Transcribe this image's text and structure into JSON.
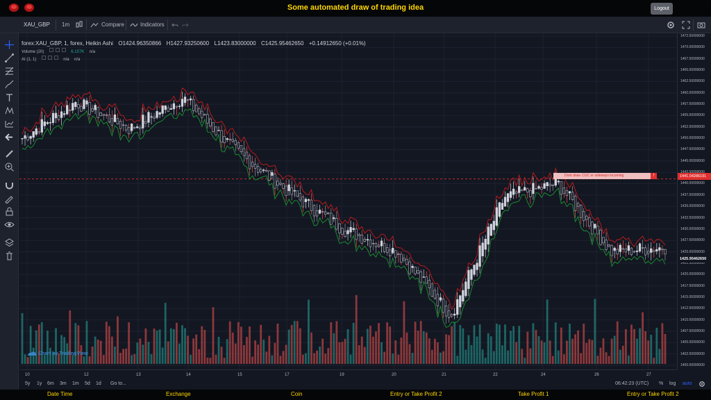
{
  "app": {
    "title": "Some automated draw of trading idea",
    "logout_label": "Logout"
  },
  "toolbar": {
    "symbol": "XAU_GBP",
    "interval": "1m",
    "compare_label": "Compare",
    "indicators_label": "Indicators"
  },
  "legend": {
    "main": {
      "symbol": "forex:XAU_GBP, 1, forex, Heikin Ashi",
      "open": "O1424.96350866",
      "high": "H1427.93250600",
      "low": "L1423.83000000",
      "close": "C1425.95462650",
      "change": "+0.14912650 (+0.01%)"
    },
    "volume": {
      "label": "Volume (20)",
      "value": "6.157K",
      "value2": "n/a"
    },
    "ai": {
      "label": "AI (1, 1)",
      "value": "n/a",
      "value2": "n/a"
    }
  },
  "price_axis": {
    "labels": [
      "1472.50000000",
      "1470.00000000",
      "1467.50000000",
      "1465.00000000",
      "1462.50000000",
      "1460.00000000",
      "1457.50000000",
      "1455.00000000",
      "1452.50000000",
      "1450.00000000",
      "1447.50000000",
      "1445.00000000",
      "1442.50000000",
      "1440.00000000",
      "1437.50000000",
      "1435.00000000",
      "1432.50000000",
      "1430.00000000",
      "1427.50000000",
      "1425.00000000",
      "1422.50000000",
      "1420.00000000",
      "1417.50000000",
      "1415.00000000",
      "1412.50000000",
      "1410.00000000",
      "1407.50000000",
      "1405.00000000",
      "1402.50000000",
      "1400.00000000"
    ],
    "current_price": "1425.95462650",
    "alert_price": "1441.04286191"
  },
  "alert": {
    "text": "Dont draw. CUC or sideways incoming",
    "mark": "!"
  },
  "time_axis": {
    "labels": [
      "10",
      "12",
      "13",
      "14",
      "15",
      "17",
      "19",
      "20",
      "21",
      "22",
      "24",
      "26",
      "27"
    ]
  },
  "bottom_bar": {
    "ranges": [
      "5y",
      "1y",
      "6m",
      "3m",
      "1m",
      "5d",
      "1d"
    ],
    "goto": "Go to...",
    "clock": "06:42:23 (UTC)",
    "percent": "%",
    "log": "log",
    "auto": "auto"
  },
  "watermark": "Chart by TradingView",
  "footer": {
    "cols": [
      "Date Time",
      "Exchange",
      "Coin",
      "Entry or Take Profit 2",
      "Take Profit 1",
      "Entry or Take Profit 2"
    ]
  },
  "colors": {
    "up": "#d1d4dc",
    "down": "#131722",
    "band_upper": "#b71c1c",
    "band_lower": "#1b8a2e",
    "vol_up": "#26a69a",
    "vol_down": "#ef5350",
    "accent": "#ffd600"
  },
  "chart_data": {
    "type": "line",
    "x": [
      "10",
      "12",
      "13",
      "14",
      "15",
      "17",
      "19",
      "20",
      "21",
      "22",
      "24",
      "26",
      "27"
    ],
    "y": [
      1450,
      1458,
      1452,
      1459,
      1447,
      1438,
      1430,
      1425,
      1411,
      1437,
      1440,
      1425,
      1426
    ],
    "ylim": [
      1400,
      1472.5
    ]
  }
}
